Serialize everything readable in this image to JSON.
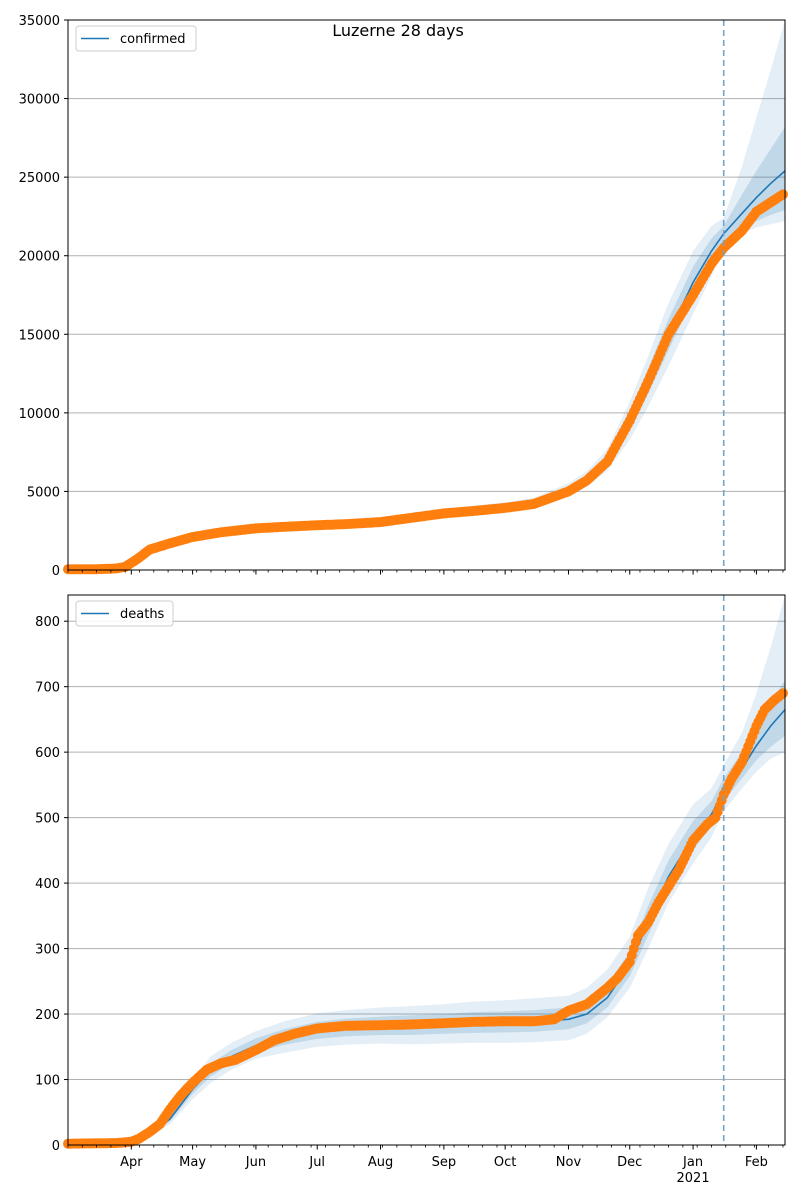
{
  "chart_data": [
    {
      "type": "line",
      "title": "Luzerne 28 days",
      "xlabel": "",
      "ylabel": "",
      "ylim": [
        0,
        35000
      ],
      "x_unit": "date",
      "xlim": [
        "2020-03-01",
        "2021-02-15"
      ],
      "x_ticks": [
        {
          "date": "2020-04-01",
          "label": "Apr"
        },
        {
          "date": "2020-05-01",
          "label": "May"
        },
        {
          "date": "2020-06-01",
          "label": "Jun"
        },
        {
          "date": "2020-07-01",
          "label": "Jul"
        },
        {
          "date": "2020-08-01",
          "label": "Aug"
        },
        {
          "date": "2020-09-01",
          "label": "Sep"
        },
        {
          "date": "2020-10-01",
          "label": "Oct"
        },
        {
          "date": "2020-11-01",
          "label": "Nov"
        },
        {
          "date": "2020-12-01",
          "label": "Dec"
        },
        {
          "date": "2021-01-01",
          "label": "Jan"
        },
        {
          "date": "2021-02-01",
          "label": "Feb"
        }
      ],
      "year_label": "2021",
      "y_ticks": [
        0,
        5000,
        10000,
        15000,
        20000,
        25000,
        30000,
        35000
      ],
      "grid": "horizontal",
      "legend": {
        "placement": "top-left",
        "entries": [
          "confirmed"
        ]
      },
      "forecast_start": "2021-01-16",
      "colors": {
        "model": "#1f77b4",
        "observed": "#ff7f0e",
        "band": "#1f77b4"
      },
      "series": [
        {
          "name": "confirmed",
          "role": "model",
          "x": [
            "2020-03-01",
            "2020-03-27",
            "2020-04-01",
            "2020-04-05",
            "2020-04-10",
            "2020-04-20",
            "2020-05-01",
            "2020-05-15",
            "2020-06-01",
            "2020-06-15",
            "2020-07-01",
            "2020-07-15",
            "2020-08-01",
            "2020-08-15",
            "2020-09-01",
            "2020-09-15",
            "2020-10-01",
            "2020-10-15",
            "2020-11-01",
            "2020-11-10",
            "2020-11-20",
            "2020-12-01",
            "2020-12-10",
            "2020-12-20",
            "2021-01-01",
            "2021-01-10",
            "2021-01-16",
            "2021-01-25",
            "2021-02-01",
            "2021-02-08",
            "2021-02-15"
          ],
          "values": [
            50,
            80,
            400,
            800,
            1300,
            1700,
            2100,
            2400,
            2650,
            2750,
            2850,
            2920,
            3050,
            3300,
            3600,
            3800,
            4000,
            4250,
            5100,
            5800,
            7000,
            9500,
            12000,
            15000,
            18300,
            20300,
            21400,
            22700,
            23700,
            24600,
            25400
          ],
          "band": {
            "lower_inner": [
              50,
              80,
              380,
              760,
              1240,
              1620,
              2000,
              2290,
              2540,
              2640,
              2740,
              2810,
              2930,
              3170,
              3460,
              3650,
              3850,
              4080,
              4890,
              5560,
              6650,
              8900,
              11200,
              14000,
              17300,
              19500,
              20900,
              21700,
              22200,
              22600,
              22900
            ],
            "upper_inner": [
              50,
              80,
              420,
              840,
              1360,
              1780,
              2200,
              2510,
              2760,
              2860,
              2960,
              3030,
              3170,
              3430,
              3740,
              3950,
              4150,
              4420,
              5310,
              6040,
              7350,
              10100,
              12800,
              16000,
              19300,
              21100,
              21900,
              23900,
              25400,
              26800,
              28200
            ],
            "lower_outer": [
              50,
              80,
              360,
              720,
              1180,
              1540,
              1900,
              2180,
              2420,
              2520,
              2620,
              2700,
              2810,
              3040,
              3320,
              3500,
              3700,
              3910,
              4680,
              5320,
              6300,
              8300,
              10400,
              13000,
              16300,
              18700,
              20400,
              21400,
              21800,
              22000,
              22200
            ],
            "upper_outer": [
              50,
              80,
              440,
              880,
              1420,
              1860,
              2300,
              2620,
              2880,
              2980,
              3080,
              3140,
              3290,
              3560,
              3880,
              4100,
              4300,
              4590,
              5520,
              6280,
              7700,
              10700,
              13600,
              17000,
              20300,
              21900,
              22400,
              25700,
              28800,
              31800,
              35000
            ]
          }
        },
        {
          "name": "",
          "role": "observed",
          "x": [
            "2020-03-01",
            "2020-03-15",
            "2020-03-25",
            "2020-03-29",
            "2020-04-01",
            "2020-04-05",
            "2020-04-10",
            "2020-04-20",
            "2020-05-01",
            "2020-05-15",
            "2020-06-01",
            "2020-06-15",
            "2020-07-01",
            "2020-07-15",
            "2020-08-01",
            "2020-08-15",
            "2020-09-01",
            "2020-09-15",
            "2020-10-01",
            "2020-10-15",
            "2020-11-01",
            "2020-11-10",
            "2020-11-20",
            "2020-12-01",
            "2020-12-10",
            "2020-12-20",
            "2021-01-01",
            "2021-01-10",
            "2021-01-16",
            "2021-01-25",
            "2021-02-01",
            "2021-02-08",
            "2021-02-14"
          ],
          "values": [
            50,
            50,
            100,
            200,
            450,
            800,
            1300,
            1700,
            2100,
            2400,
            2650,
            2750,
            2850,
            2920,
            3050,
            3300,
            3600,
            3750,
            3950,
            4200,
            5000,
            5700,
            6900,
            9500,
            12000,
            15000,
            17500,
            19500,
            20500,
            21600,
            22800,
            23400,
            23900
          ]
        }
      ]
    },
    {
      "type": "line",
      "title": "",
      "xlabel": "",
      "ylabel": "",
      "ylim": [
        0,
        840
      ],
      "x_unit": "date",
      "xlim": [
        "2020-03-01",
        "2021-02-15"
      ],
      "x_ticks": [
        {
          "date": "2020-04-01",
          "label": "Apr"
        },
        {
          "date": "2020-05-01",
          "label": "May"
        },
        {
          "date": "2020-06-01",
          "label": "Jun"
        },
        {
          "date": "2020-07-01",
          "label": "Jul"
        },
        {
          "date": "2020-08-01",
          "label": "Aug"
        },
        {
          "date": "2020-09-01",
          "label": "Sep"
        },
        {
          "date": "2020-10-01",
          "label": "Oct"
        },
        {
          "date": "2020-11-01",
          "label": "Nov"
        },
        {
          "date": "2020-12-01",
          "label": "Dec"
        },
        {
          "date": "2021-01-01",
          "label": "Jan"
        },
        {
          "date": "2021-02-01",
          "label": "Feb"
        }
      ],
      "year_label": "2021",
      "y_ticks": [
        0,
        100,
        200,
        300,
        400,
        500,
        600,
        700,
        800
      ],
      "grid": "horizontal",
      "legend": {
        "placement": "top-left",
        "entries": [
          "deaths"
        ]
      },
      "forecast_start": "2021-01-16",
      "colors": {
        "model": "#1f77b4",
        "observed": "#ff7f0e",
        "band": "#1f77b4"
      },
      "series": [
        {
          "name": "deaths",
          "role": "model",
          "x": [
            "2020-03-01",
            "2020-04-01",
            "2020-04-10",
            "2020-04-20",
            "2020-05-01",
            "2020-05-10",
            "2020-05-20",
            "2020-06-01",
            "2020-06-15",
            "2020-07-01",
            "2020-07-15",
            "2020-08-01",
            "2020-08-15",
            "2020-09-01",
            "2020-09-15",
            "2020-10-01",
            "2020-10-15",
            "2020-11-01",
            "2020-11-10",
            "2020-11-20",
            "2020-12-01",
            "2020-12-10",
            "2020-12-20",
            "2021-01-01",
            "2021-01-10",
            "2021-01-16",
            "2021-01-25",
            "2021-02-01",
            "2021-02-08",
            "2021-02-15"
          ],
          "values": [
            2,
            5,
            15,
            40,
            85,
            115,
            135,
            152,
            165,
            175,
            180,
            182,
            183,
            185,
            187,
            188,
            189,
            192,
            200,
            225,
            275,
            340,
            410,
            470,
            505,
            540,
            575,
            610,
            640,
            665
          ],
          "band": {
            "lower_inner": [
              2,
              5,
              14,
              36,
              78,
              105,
              125,
              142,
              153,
              162,
              166,
              168,
              168,
              170,
              171,
              172,
              173,
              177,
              186,
              210,
              258,
              320,
              390,
              450,
              488,
              525,
              560,
              588,
              608,
              625
            ],
            "upper_inner": [
              2,
              5,
              16,
              44,
              92,
              125,
              145,
              163,
              177,
              188,
              193,
              196,
              198,
              200,
              203,
              204,
              206,
              210,
              220,
              245,
              295,
              365,
              435,
              495,
              525,
              560,
              600,
              640,
              675,
              710
            ],
            "lower_outer": [
              2,
              5,
              13,
              32,
              70,
              95,
              115,
              132,
              141,
              150,
              153,
              155,
              154,
              155,
              156,
              156,
              157,
              160,
              170,
              195,
              240,
              300,
              370,
              430,
              470,
              510,
              545,
              570,
              590,
              600
            ],
            "upper_outer": [
              2,
              5,
              17,
              48,
              100,
              136,
              156,
              174,
              189,
              201,
              206,
              210,
              212,
              215,
              219,
              221,
              224,
              228,
              240,
              268,
              318,
              392,
              460,
              520,
              545,
              580,
              630,
              690,
              760,
              840
            ]
          }
        },
        {
          "name": "",
          "role": "observed",
          "x": [
            "2020-03-01",
            "2020-03-25",
            "2020-04-01",
            "2020-04-05",
            "2020-04-10",
            "2020-04-15",
            "2020-04-20",
            "2020-04-25",
            "2020-05-01",
            "2020-05-08",
            "2020-05-15",
            "2020-05-22",
            "2020-06-01",
            "2020-06-10",
            "2020-06-20",
            "2020-07-01",
            "2020-07-15",
            "2020-08-01",
            "2020-08-15",
            "2020-09-01",
            "2020-09-15",
            "2020-10-01",
            "2020-10-15",
            "2020-10-25",
            "2020-11-01",
            "2020-11-10",
            "2020-11-20",
            "2020-11-25",
            "2020-12-01",
            "2020-12-05",
            "2020-12-10",
            "2020-12-15",
            "2020-12-20",
            "2020-12-25",
            "2021-01-01",
            "2021-01-08",
            "2021-01-12",
            "2021-01-16",
            "2021-01-20",
            "2021-01-25",
            "2021-02-01",
            "2021-02-05",
            "2021-02-10",
            "2021-02-14"
          ],
          "values": [
            2,
            3,
            5,
            10,
            20,
            32,
            55,
            75,
            95,
            115,
            125,
            130,
            145,
            160,
            170,
            178,
            182,
            183,
            184,
            186,
            188,
            189,
            189,
            192,
            205,
            215,
            240,
            255,
            280,
            320,
            340,
            370,
            395,
            420,
            465,
            490,
            500,
            535,
            560,
            585,
            640,
            665,
            680,
            690
          ]
        }
      ]
    }
  ]
}
